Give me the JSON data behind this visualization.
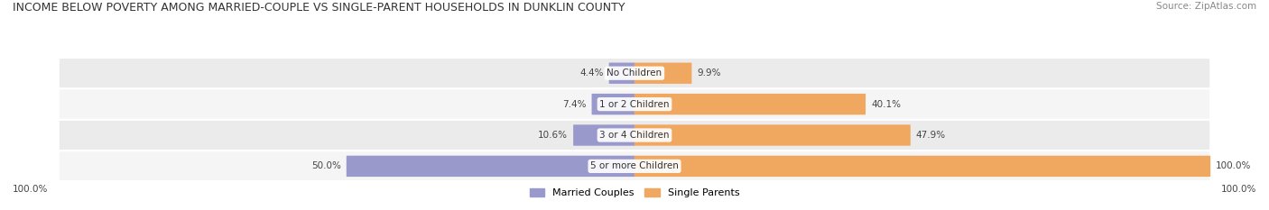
{
  "title": "INCOME BELOW POVERTY AMONG MARRIED-COUPLE VS SINGLE-PARENT HOUSEHOLDS IN DUNKLIN COUNTY",
  "source": "Source: ZipAtlas.com",
  "categories": [
    "No Children",
    "1 or 2 Children",
    "3 or 4 Children",
    "5 or more Children"
  ],
  "married_values": [
    4.4,
    7.4,
    10.6,
    50.0
  ],
  "single_values": [
    9.9,
    40.1,
    47.9,
    100.0
  ],
  "married_color": "#9999cc",
  "single_color": "#f0a860",
  "row_bg_even": "#ebebeb",
  "row_bg_odd": "#f5f5f5",
  "max_value": 100.0,
  "legend_married": "Married Couples",
  "legend_single": "Single Parents",
  "title_fontsize": 9.0,
  "source_fontsize": 7.5,
  "label_fontsize": 7.5,
  "legend_fontsize": 8.0,
  "axis_label_100": "100.0%"
}
